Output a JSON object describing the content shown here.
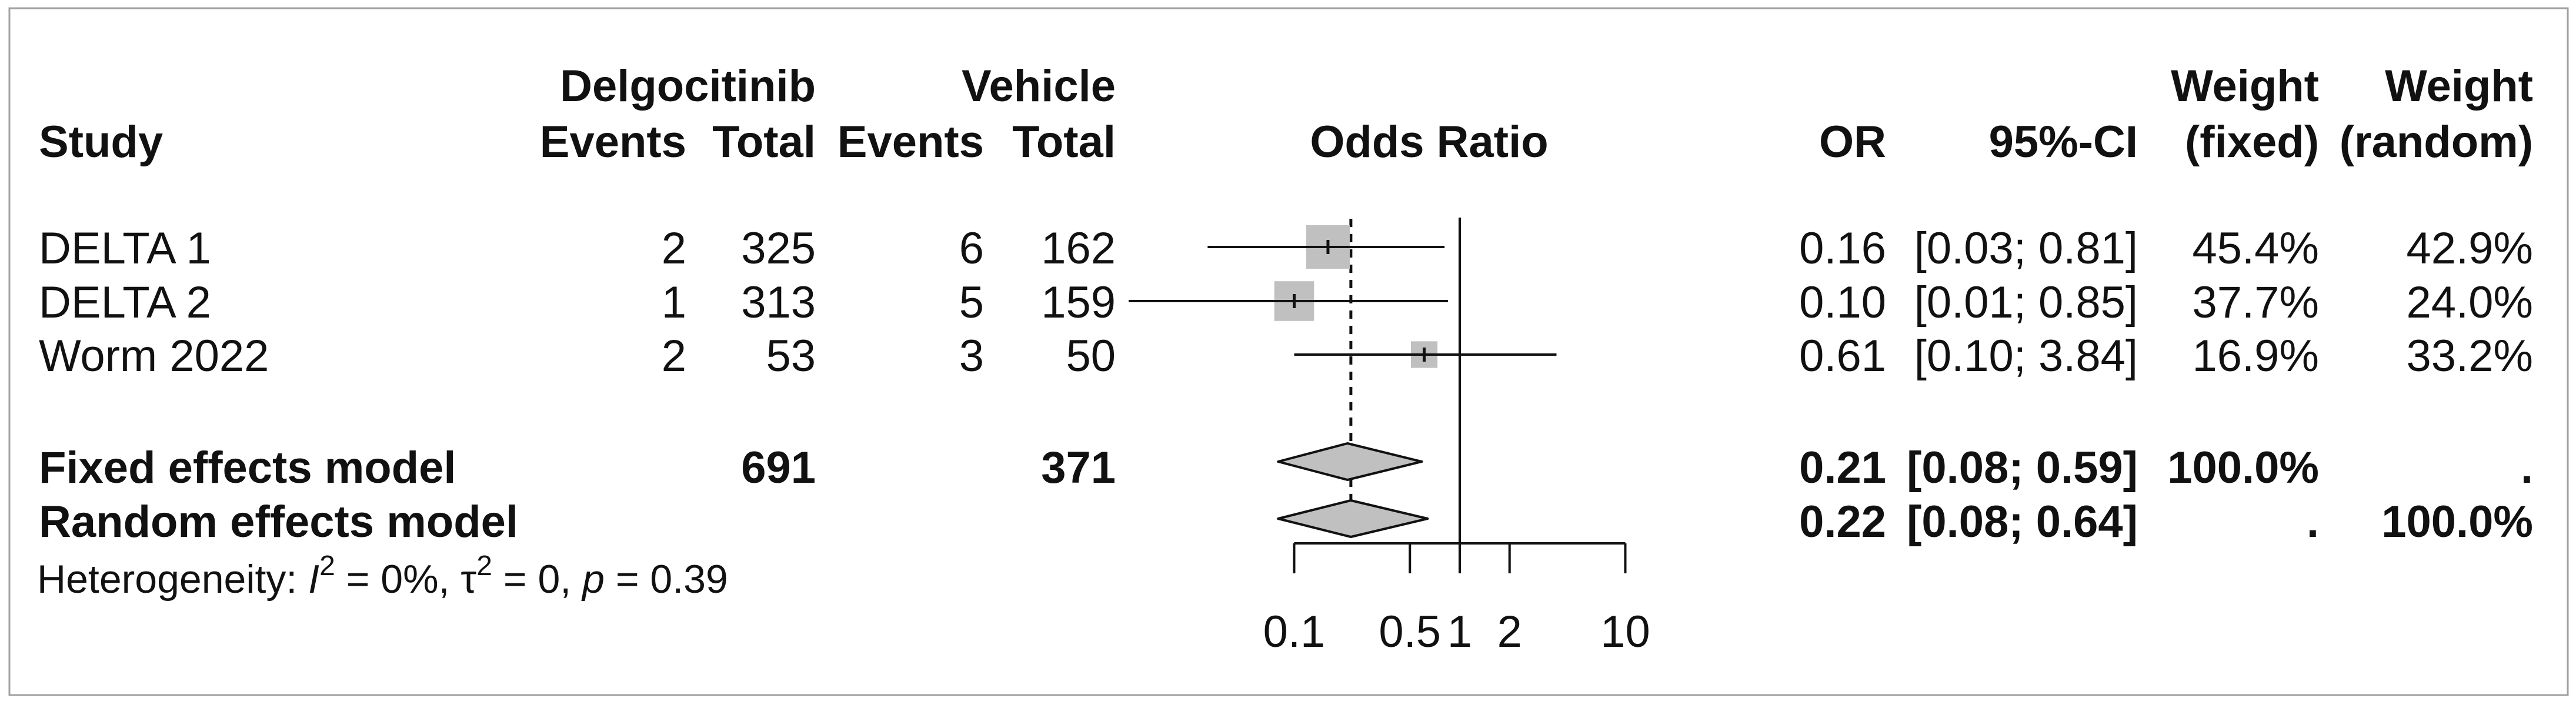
{
  "header": {
    "study": "Study",
    "group1": "Delgocitinib",
    "group2": "Vehicle",
    "events": "Events",
    "total": "Total",
    "plot_title": "Odds Ratio",
    "or": "OR",
    "ci": "95%-CI",
    "weight": "Weight",
    "fixed": "(fixed)",
    "random": "(random)"
  },
  "studies": [
    {
      "name": "DELTA 1",
      "e1": "2",
      "n1": "325",
      "e2": "6",
      "n2": "162",
      "or_text": "0.16",
      "ci_text": "[0.03; 0.81]",
      "w_fixed_text": "45.4%",
      "w_random_text": "42.9%"
    },
    {
      "name": "DELTA 2",
      "e1": "1",
      "n1": "313",
      "e2": "5",
      "n2": "159",
      "or_text": "0.10",
      "ci_text": "[0.01; 0.85]",
      "w_fixed_text": "37.7%",
      "w_random_text": "24.0%"
    },
    {
      "name": "Worm 2022",
      "e1": "2",
      "n1": "53",
      "e2": "3",
      "n2": "50",
      "or_text": "0.61",
      "ci_text": "[0.10; 3.84]",
      "w_fixed_text": "16.9%",
      "w_random_text": "33.2%"
    }
  ],
  "fixed_model": {
    "name": "Fixed effects model",
    "n1": "691",
    "n2": "371",
    "or_text": "0.21",
    "ci_text": "[0.08; 0.59]",
    "w_fixed_text": "100.0%",
    "w_random_text": "."
  },
  "random_model": {
    "name": "Random effects model",
    "or_text": "0.22",
    "ci_text": "[0.08; 0.64]",
    "w_fixed_text": ".",
    "w_random_text": "100.0%"
  },
  "heterogeneity": {
    "label": "Heterogeneity:",
    "i2_symbol": "I",
    "i2_value": "= 0%,",
    "tau2_symbol": "τ",
    "tau2_value": "= 0,",
    "p_symbol": "p",
    "p_value": "= 0.39",
    "exponent": "2"
  },
  "colors": {
    "square": "#c0c0c0",
    "diamond": "#c0c0c0",
    "line": "#111111",
    "frame": "#a0a0a0"
  },
  "chart_data": {
    "type": "forest",
    "title": "Odds Ratio",
    "x_scale": "log",
    "xlim": [
      0.1,
      10
    ],
    "ticks": [
      0.1,
      0.5,
      1,
      2,
      10
    ],
    "tick_labels": [
      "0.1",
      "0.5",
      "1",
      "2",
      "10"
    ],
    "null_value": 1,
    "studies": [
      {
        "name": "DELTA 1",
        "or": 0.16,
        "lower": 0.03,
        "upper": 0.81,
        "weight_fixed": 45.4,
        "weight_random": 42.9
      },
      {
        "name": "DELTA 2",
        "or": 0.1,
        "lower": 0.01,
        "upper": 0.85,
        "weight_fixed": 37.7,
        "weight_random": 24.0
      },
      {
        "name": "Worm 2022",
        "or": 0.61,
        "lower": 0.1,
        "upper": 3.84,
        "weight_fixed": 16.9,
        "weight_random": 33.2
      }
    ],
    "fixed": {
      "or": 0.21,
      "lower": 0.08,
      "upper": 0.59
    },
    "random": {
      "or": 0.22,
      "lower": 0.08,
      "upper": 0.64
    },
    "grid": false
  }
}
